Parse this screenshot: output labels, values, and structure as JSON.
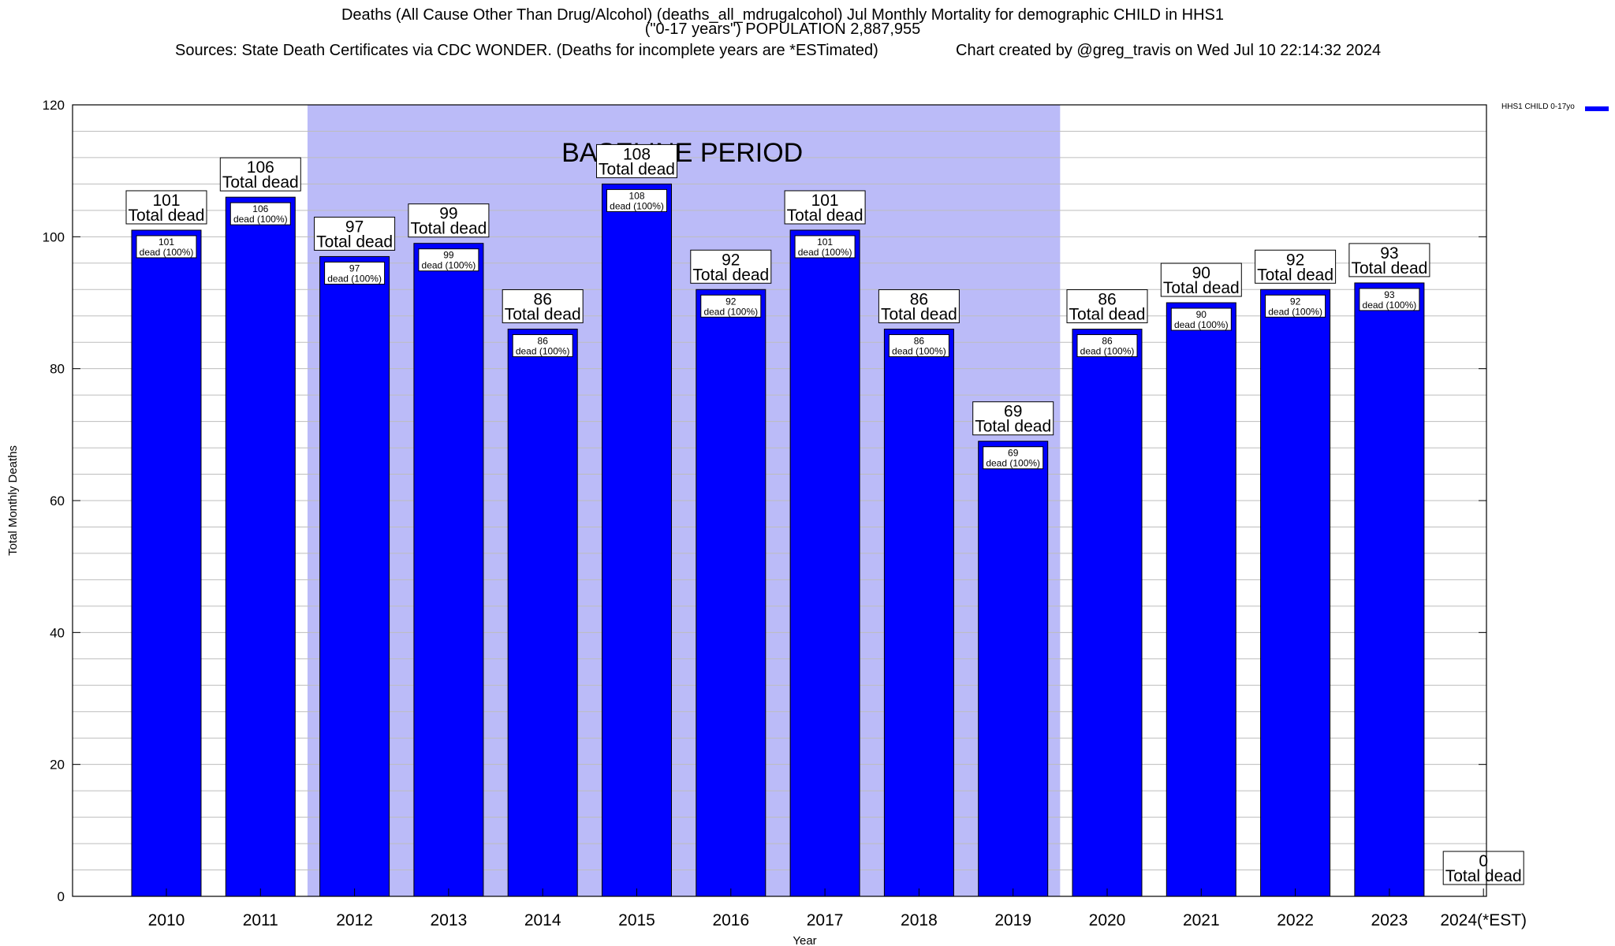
{
  "title": {
    "line1": "Deaths (All Cause Other Than Drug/Alcohol) (deaths_all_mdrugalcohol) Jul Monthly Mortality for demographic CHILD in HHS1",
    "line2": "(\"0-17 years\") POPULATION 2,887,955",
    "sources": "Sources: State Death Certificates via CDC WONDER. (Deaths for incomplete years are *ESTimated)",
    "credit": "Chart created by @greg_travis on Wed Jul 10 22:14:32 2024"
  },
  "legend": {
    "label": "HHS1 CHILD 0-17yo",
    "color": "#0000ff"
  },
  "chart_data": {
    "type": "bar",
    "xlabel": "Year",
    "ylabel": "Total Monthly Deaths",
    "ylim": [
      0,
      120
    ],
    "yticks": [
      0,
      20,
      40,
      60,
      80,
      100,
      120
    ],
    "grid": true,
    "categories": [
      "2010",
      "2011",
      "2012",
      "2013",
      "2014",
      "2015",
      "2016",
      "2017",
      "2018",
      "2019",
      "2020",
      "2021",
      "2022",
      "2023",
      "2024(*EST)"
    ],
    "series": [
      {
        "name": "HHS1 CHILD 0-17yo",
        "color": "#0000ff",
        "values": [
          101,
          106,
          97,
          99,
          86,
          108,
          92,
          101,
          86,
          69,
          86,
          90,
          92,
          93,
          0
        ]
      }
    ],
    "top_label_suffix": "Total dead",
    "inner_label_suffix": "dead (100%)",
    "baseline_period": {
      "label": "BASELINE PERIOD",
      "from": "2012",
      "to": "2019",
      "color": "#bbbbf8"
    }
  }
}
